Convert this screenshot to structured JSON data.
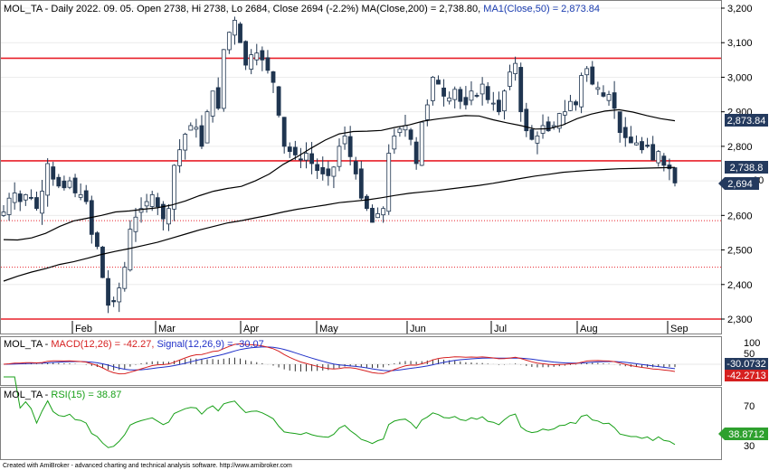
{
  "price_panel": {
    "header": {
      "ticker": "MOL_TA",
      "info": " - Daily 2022. 09. 05. Open 2738, Hi 2738, Lo 2684, Close 2694 (-2.2%) ",
      "ma200": "MA(Close,200) = 2,738.80,",
      "ma50": " MA1(Close,50) = 2,873.84"
    },
    "ma50_badge": "2,873.84",
    "ma200_badge": "2,738.8",
    "close_badge": "2,694",
    "partial_tick": "00"
  },
  "macd_panel": {
    "header_ticker": "MOL_TA - ",
    "header_macd": "MACD(12,26) = -42.27,",
    "header_signal": " Signal(12,26,9) = -30.07",
    "signal_badge": "-30.0732",
    "macd_badge": "-42.2713",
    "ticks": [
      "100",
      "50"
    ]
  },
  "rsi_panel": {
    "header_ticker": "MOL_TA - ",
    "header_rsi": "RSI(15) = 38.87",
    "rsi_badge": "38.8712",
    "ticks": [
      "70",
      "30"
    ]
  },
  "footer": "Created with AmiBroker - advanced charting and technical analysis software. http://www.amibroker.com",
  "colors": {
    "candle": "#1f3550",
    "resistance": "#e8202a",
    "ma": "#000000",
    "macd": "#d62020",
    "signal": "#2030c8",
    "rsi": "#18a018",
    "badge": "#243a5e",
    "rsi_badge": "#2ea02e"
  },
  "chart_data": [
    {
      "type": "candlestick",
      "title": "MOL_TA - Daily 2022. 09. 05.",
      "x_labels": [
        "Feb",
        "Mar",
        "Apr",
        "May",
        "Jun",
        "Jul",
        "Aug",
        "Sep"
      ],
      "y_ticks": [
        3200,
        3100,
        3000,
        2900,
        2800,
        2700,
        2600,
        2500,
        2400,
        2300
      ],
      "ylim": [
        2265,
        3220
      ],
      "last_bar": {
        "open": 2738,
        "high": 2738,
        "low": 2684,
        "close": 2694,
        "change_pct": -2.2
      },
      "series": [
        {
          "name": "MA(Close,200)",
          "last_value": 2738.8,
          "values": [
            2410,
            2424,
            2436,
            2446,
            2458,
            2466,
            2476,
            2487,
            2496,
            2504,
            2513,
            2522,
            2534,
            2546,
            2558,
            2568,
            2578,
            2585,
            2593,
            2601,
            2610,
            2618,
            2624,
            2630,
            2637,
            2641,
            2645,
            2651,
            2658,
            2664,
            2668,
            2672,
            2677,
            2682,
            2687,
            2693,
            2700,
            2707,
            2714,
            2719,
            2725,
            2728,
            2731,
            2733,
            2735,
            2736,
            2737,
            2738,
            2739
          ]
        },
        {
          "name": "MA1(Close,50)",
          "last_value": 2873.84,
          "values": [
            2530,
            2529,
            2535,
            2548,
            2568,
            2584,
            2592,
            2600,
            2610,
            2613,
            2618,
            2622,
            2630,
            2642,
            2657,
            2670,
            2678,
            2684,
            2700,
            2720,
            2748,
            2770,
            2795,
            2818,
            2836,
            2843,
            2844,
            2846,
            2855,
            2862,
            2873,
            2879,
            2884,
            2889,
            2888,
            2877,
            2868,
            2860,
            2850,
            2851,
            2862,
            2880,
            2893,
            2902,
            2906,
            2899,
            2889,
            2880,
            2874
          ]
        }
      ],
      "horizontal_lines_solid": [
        3055,
        2758,
        2300
      ],
      "horizontal_lines_dotted": [
        2585,
        2450
      ],
      "closes": [
        2610,
        2650,
        2665,
        2640,
        2660,
        2650,
        2620,
        2670,
        2750,
        2705,
        2685,
        2680,
        2700,
        2665,
        2660,
        2640,
        2545,
        2510,
        2420,
        2340,
        2350,
        2390,
        2450,
        2560,
        2595,
        2620,
        2640,
        2660,
        2625,
        2590,
        2620,
        2745,
        2790,
        2835,
        2860,
        2855,
        2800,
        2900,
        2960,
        2910,
        3080,
        3130,
        3165,
        3100,
        3035,
        3065,
        3070,
        3050,
        3020,
        2985,
        2890,
        2800,
        2785,
        2775,
        2760,
        2780,
        2750,
        2730,
        2720,
        2715,
        2740,
        2800,
        2830,
        2770,
        2720,
        2650,
        2620,
        2580,
        2605,
        2620,
        2780,
        2830,
        2850,
        2860,
        2820,
        2750,
        2870,
        2920,
        3000,
        2980,
        2945,
        2940,
        2965,
        2930,
        2920,
        2960,
        2945,
        2980,
        2935,
        2925,
        2900,
        2960,
        3015,
        3040,
        2900,
        2845,
        2820,
        2830,
        2860,
        2845,
        2860,
        2895,
        2900,
        2930,
        2920,
        3005,
        3025,
        2980,
        2970,
        2945,
        2950,
        2910,
        2840,
        2825,
        2810,
        2810,
        2790,
        2800,
        2760,
        2785,
        2745,
        2735,
        2694
      ]
    },
    {
      "type": "line",
      "title": "MACD(12,26), Signal(12,26,9)",
      "series": [
        {
          "name": "MACD(12,26)",
          "last_value": -42.27
        },
        {
          "name": "Signal(12,26,9)",
          "last_value": -30.07
        }
      ],
      "y_ticks": [
        100,
        50
      ]
    },
    {
      "type": "line",
      "title": "RSI(15)",
      "series": [
        {
          "name": "RSI(15)",
          "last_value": 38.87
        }
      ],
      "y_ticks": [
        70,
        30
      ]
    }
  ]
}
